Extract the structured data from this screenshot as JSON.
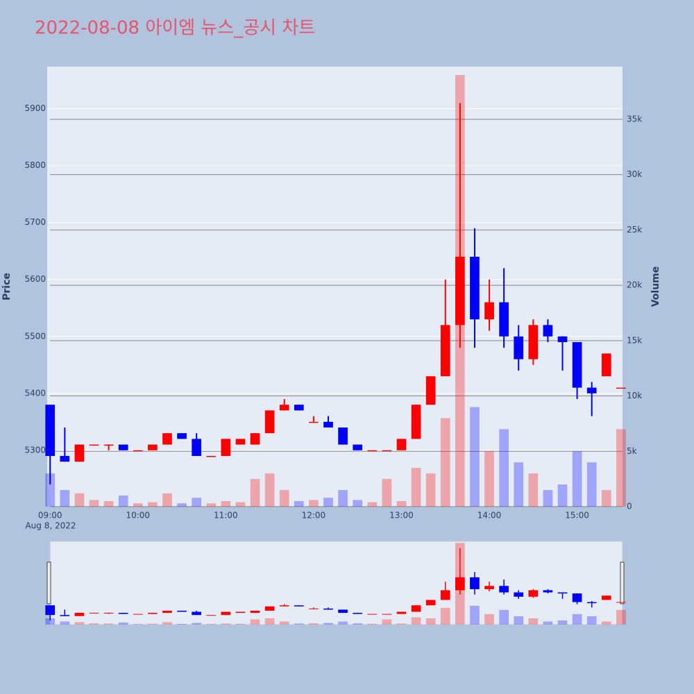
{
  "chart_data": {
    "type": "candlestick",
    "title": "2022-08-08 아이엠 뉴스_공시 차트",
    "ylabel": "Price",
    "y2label": "Volume",
    "x_sublabel": "Aug 8, 2022",
    "increasing_color": "#ff0000",
    "decreasing_color": "#0000ff",
    "x": [
      "2022-08-08 09:00",
      "2022-08-08 09:10",
      "2022-08-08 09:20",
      "2022-08-08 09:30",
      "2022-08-08 09:40",
      "2022-08-08 09:50",
      "2022-08-08 10:00",
      "2022-08-08 10:10",
      "2022-08-08 10:20",
      "2022-08-08 10:30",
      "2022-08-08 10:40",
      "2022-08-08 10:50",
      "2022-08-08 11:00",
      "2022-08-08 11:10",
      "2022-08-08 11:20",
      "2022-08-08 11:30",
      "2022-08-08 11:40",
      "2022-08-08 11:50",
      "2022-08-08 12:00",
      "2022-08-08 12:10",
      "2022-08-08 12:20",
      "2022-08-08 12:30",
      "2022-08-08 12:40",
      "2022-08-08 12:50",
      "2022-08-08 13:00",
      "2022-08-08 13:10",
      "2022-08-08 13:20",
      "2022-08-08 13:30",
      "2022-08-08 13:40",
      "2022-08-08 13:50",
      "2022-08-08 14:00",
      "2022-08-08 14:10",
      "2022-08-08 14:20",
      "2022-08-08 14:30",
      "2022-08-08 14:40",
      "2022-08-08 14:50",
      "2022-08-08 15:00",
      "2022-08-08 15:10",
      "2022-08-08 15:20",
      "2022-08-08 15:30"
    ],
    "open": [
      5380,
      5290,
      5280,
      5310,
      5310,
      5310,
      5300,
      5300,
      5310,
      5330,
      5320,
      5290,
      5290,
      5310,
      5310,
      5330,
      5370,
      5380,
      5350,
      5350,
      5340,
      5310,
      5300,
      5300,
      5300,
      5320,
      5380,
      5430,
      5520,
      5640,
      5530,
      5560,
      5500,
      5460,
      5520,
      5500,
      5490,
      5410,
      5430,
      5410
    ],
    "high": [
      5380,
      5340,
      5310,
      5310,
      5310,
      5310,
      5300,
      5310,
      5330,
      5330,
      5330,
      5290,
      5320,
      5320,
      5330,
      5370,
      5390,
      5380,
      5360,
      5360,
      5340,
      5310,
      5300,
      5300,
      5320,
      5380,
      5430,
      5600,
      5910,
      5690,
      5600,
      5620,
      5520,
      5530,
      5530,
      5500,
      5490,
      5420,
      5470,
      5410
    ],
    "low": [
      5240,
      5280,
      5280,
      5310,
      5300,
      5300,
      5300,
      5300,
      5310,
      5320,
      5290,
      5290,
      5290,
      5310,
      5310,
      5330,
      5370,
      5370,
      5350,
      5340,
      5310,
      5300,
      5300,
      5300,
      5300,
      5320,
      5380,
      5430,
      5480,
      5480,
      5510,
      5480,
      5440,
      5450,
      5490,
      5440,
      5390,
      5360,
      5430,
      5410
    ],
    "close": [
      5290,
      5280,
      5310,
      5310,
      5310,
      5300,
      5300,
      5310,
      5330,
      5320,
      5290,
      5290,
      5320,
      5320,
      5330,
      5370,
      5380,
      5370,
      5350,
      5340,
      5310,
      5300,
      5300,
      5300,
      5320,
      5380,
      5430,
      5520,
      5640,
      5530,
      5560,
      5500,
      5460,
      5520,
      5500,
      5490,
      5410,
      5400,
      5470,
      5410
    ],
    "volume": [
      3000,
      1500,
      1200,
      600,
      500,
      1000,
      300,
      400,
      1200,
      300,
      800,
      300,
      500,
      400,
      2500,
      3000,
      1500,
      500,
      600,
      800,
      1500,
      600,
      400,
      2500,
      500,
      3500,
      3000,
      8000,
      39000,
      9000,
      5000,
      7000,
      4000,
      3000,
      1500,
      2000,
      5000,
      4000,
      1500,
      7000
    ],
    "xlim": [
      "2022-08-08 08:58",
      "2022-08-08 15:31"
    ],
    "xticks": [
      {
        "value": "2022-08-08 09:00",
        "label": "09:00"
      },
      {
        "value": "2022-08-08 10:00",
        "label": "10:00"
      },
      {
        "value": "2022-08-08 11:00",
        "label": "11:00"
      },
      {
        "value": "2022-08-08 12:00",
        "label": "12:00"
      },
      {
        "value": "2022-08-08 13:00",
        "label": "13:00"
      },
      {
        "value": "2022-08-08 14:00",
        "label": "14:00"
      },
      {
        "value": "2022-08-08 15:00",
        "label": "15:00"
      }
    ],
    "ylim": [
      5201,
      5974
    ],
    "yticks": [
      5300,
      5400,
      5500,
      5600,
      5700,
      5800,
      5900
    ],
    "y2lim": [
      0,
      39760
    ],
    "y2ticks": [
      0,
      {
        "value": 5000,
        "label": "5k"
      },
      {
        "value": 10000,
        "label": "10k"
      },
      {
        "value": 15000,
        "label": "15k"
      },
      {
        "value": 20000,
        "label": "20k"
      },
      {
        "value": 25000,
        "label": "25k"
      },
      {
        "value": 30000,
        "label": "30k"
      },
      {
        "value": 35000,
        "label": "35k"
      }
    ]
  }
}
